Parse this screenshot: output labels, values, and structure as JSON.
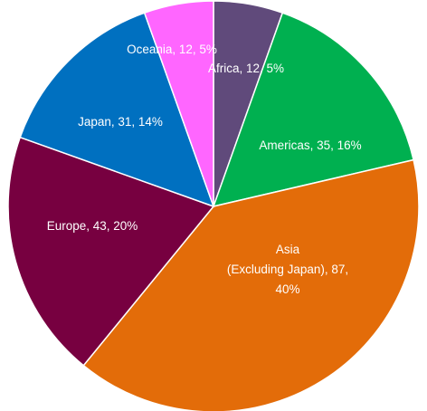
{
  "chart_data": {
    "type": "pie",
    "values": [
      12,
      35,
      87,
      43,
      31,
      12
    ],
    "value_labels": [
      "Africa, 12, 5%",
      "Americas, 35, 16%",
      "Asia\n(Excluding Japan), 87,\n40%",
      "Europe, 43, 20%",
      "Japan, 31, 14%",
      "Oceania, 12, 5%"
    ],
    "colors": [
      "#604a7b",
      "#00b050",
      "#e36c09",
      "#770040",
      "#0070c0",
      "#ff66ff"
    ]
  }
}
